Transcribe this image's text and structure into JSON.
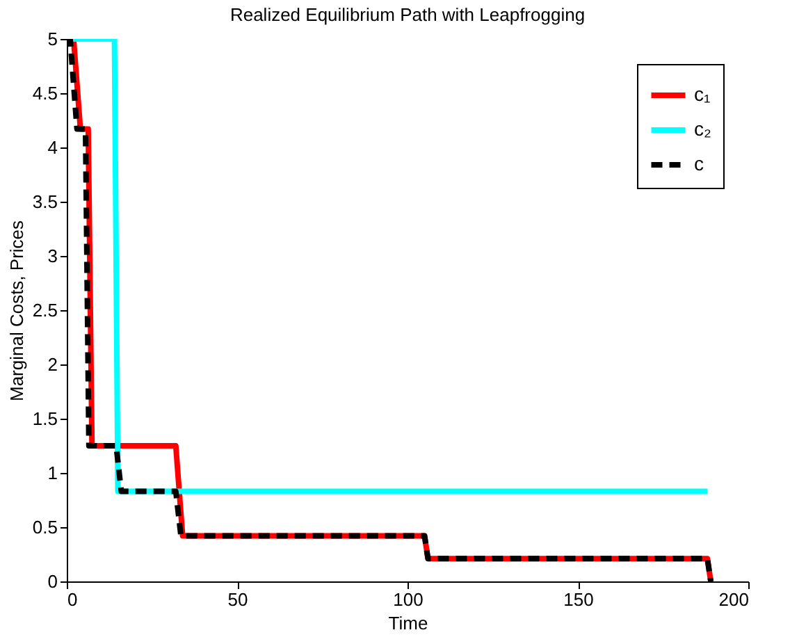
{
  "chart_data": {
    "type": "line",
    "title": "Realized Equilibrium Path with Leapfrogging",
    "xlabel": "Time",
    "ylabel": "Marginal Costs, Prices",
    "xlim": [
      0,
      200
    ],
    "xticks": [
      0,
      50,
      100,
      150,
      200
    ],
    "ylim": [
      0,
      5
    ],
    "yticks": [
      0,
      0.5,
      1,
      1.5,
      2,
      2.5,
      3,
      3.5,
      4,
      4.5,
      5
    ],
    "grid": false,
    "legend": "top right",
    "series": [
      {
        "name": "c₁",
        "color": "#ff0000",
        "line_style": "solid",
        "x": [
          0,
          2,
          4,
          6.3,
          7.4,
          32,
          34,
          105,
          106,
          188,
          189
        ],
        "values": [
          5,
          5,
          4.17,
          4.17,
          1.25,
          1.25,
          0.42,
          0.42,
          0.21,
          0.21,
          0
        ]
      },
      {
        "name": "c₂",
        "color": "#00ffff",
        "line_style": "solid",
        "x": [
          0,
          14,
          15,
          188
        ],
        "values": [
          5,
          5,
          0.83,
          0.83
        ]
      },
      {
        "name": "c",
        "color": "#000000",
        "line_style": "dashed",
        "x": [
          0,
          1,
          3,
          5.5,
          6.5,
          14.5,
          16,
          32,
          33.5,
          105,
          106,
          188,
          189
        ],
        "values": [
          5,
          5,
          4.17,
          4.17,
          1.25,
          1.25,
          0.83,
          0.83,
          0.42,
          0.42,
          0.21,
          0.21,
          0
        ]
      }
    ]
  }
}
